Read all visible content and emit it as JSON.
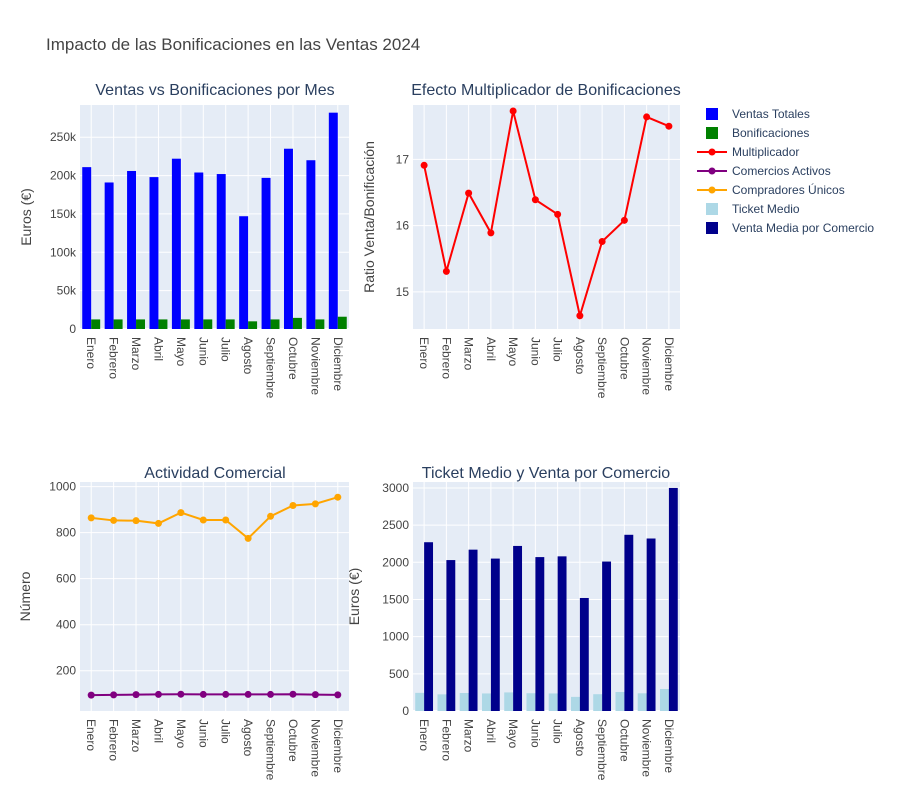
{
  "title": "Impacto de las Bonificaciones en las Ventas 2024",
  "months": [
    "Enero",
    "Febrero",
    "Marzo",
    "Abril",
    "Mayo",
    "Junio",
    "Julio",
    "Agosto",
    "Septiembre",
    "Octubre",
    "Noviembre",
    "Diciembre"
  ],
  "legend": [
    {
      "label": "Ventas Totales",
      "kind": "box",
      "color": "#0000ff"
    },
    {
      "label": "Bonificaciones",
      "kind": "box",
      "color": "#008000"
    },
    {
      "label": "Multiplicador",
      "kind": "line",
      "color": "#ff0000"
    },
    {
      "label": "Comercios Activos",
      "kind": "line",
      "color": "#800080"
    },
    {
      "label": "Compradores Únicos",
      "kind": "line",
      "color": "#ffa500"
    },
    {
      "label": "Ticket Medio",
      "kind": "box",
      "color": "#add8e6"
    },
    {
      "label": "Venta Media por Comercio",
      "kind": "box",
      "color": "#00008b"
    }
  ],
  "chart_data": [
    {
      "type": "bar",
      "title": "Ventas vs Bonificaciones por Mes",
      "ylabel": "Euros (€)",
      "ylim": [
        0,
        292000
      ],
      "yticks": [
        0,
        50000,
        100000,
        150000,
        200000,
        250000
      ],
      "ytick_labels": [
        "0",
        "50k",
        "100k",
        "150k",
        "200k",
        "250k"
      ],
      "series": [
        {
          "name": "Ventas Totales",
          "color": "#0000ff",
          "values": [
            211000,
            191000,
            206000,
            198000,
            222000,
            204000,
            202000,
            147000,
            197000,
            235000,
            220000,
            282000
          ]
        },
        {
          "name": "Bonificaciones",
          "color": "#008000",
          "values": [
            12500,
            12500,
            12500,
            12500,
            12500,
            12500,
            12500,
            10000,
            12500,
            14500,
            12500,
            16000
          ]
        }
      ]
    },
    {
      "type": "line",
      "title": "Efecto Multiplicador de Bonificaciones",
      "ylabel": "Ratio Venta/Bonificación",
      "ylim": [
        14.44,
        17.82
      ],
      "yticks": [
        15,
        16,
        17
      ],
      "ytick_labels": [
        "15",
        "16",
        "17"
      ],
      "series": [
        {
          "name": "Multiplicador",
          "color": "#ff0000",
          "values": [
            16.91,
            15.31,
            16.49,
            15.89,
            17.73,
            16.39,
            16.17,
            14.64,
            15.76,
            16.08,
            17.64,
            17.5
          ]
        }
      ]
    },
    {
      "type": "line",
      "title": "Actividad Comercial",
      "ylabel": "Número",
      "ylim": [
        25,
        1020
      ],
      "yticks": [
        200,
        400,
        600,
        800,
        1000
      ],
      "ytick_labels": [
        "200",
        "400",
        "600",
        "800",
        "1000"
      ],
      "series": [
        {
          "name": "Comercios Activos",
          "color": "#800080",
          "values": [
            94,
            95,
            96,
            97,
            98,
            97,
            97,
            97,
            97,
            98,
            96,
            95
          ]
        },
        {
          "name": "Compradores Únicos",
          "color": "#ffa500",
          "values": [
            864,
            853,
            852,
            840,
            887,
            855,
            855,
            775,
            871,
            918,
            925,
            954
          ]
        }
      ]
    },
    {
      "type": "bar",
      "title": "Ticket Medio y Venta por Comercio",
      "ylabel": "Euros (€)",
      "ylim": [
        0,
        3080
      ],
      "yticks": [
        0,
        500,
        1000,
        1500,
        2000,
        2500,
        3000
      ],
      "ytick_labels": [
        "0",
        "500",
        "1000",
        "1500",
        "2000",
        "2500",
        "3000"
      ],
      "series": [
        {
          "name": "Ticket Medio",
          "color": "#add8e6",
          "values": [
            244,
            224,
            242,
            236,
            250,
            239,
            236,
            190,
            226,
            256,
            238,
            296
          ]
        },
        {
          "name": "Venta Media por Comercio",
          "color": "#00008b",
          "values": [
            2270,
            2030,
            2170,
            2050,
            2220,
            2070,
            2080,
            1520,
            2010,
            2370,
            2320,
            3000
          ]
        }
      ]
    }
  ]
}
